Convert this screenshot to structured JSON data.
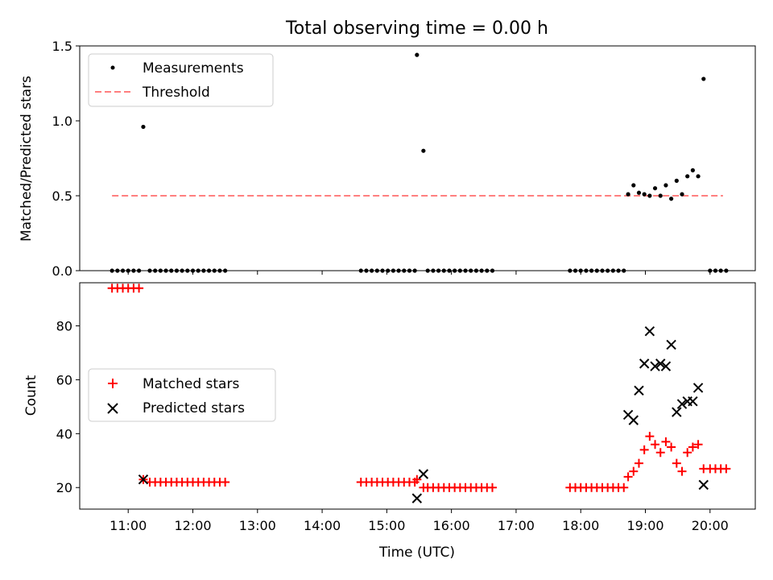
{
  "chart_data": [
    {
      "type": "scatter",
      "title": "Total observing time = 0.00 h",
      "ylabel": "Matched/Predicted stars",
      "xlabel": "",
      "xlim": [
        "10:15",
        "20:42"
      ],
      "ylim": [
        0,
        1.5
      ],
      "yticks": [
        0.0,
        0.5,
        1.0,
        1.5
      ],
      "ytick_labels": [
        "0.0",
        "0.5",
        "1.0",
        "1.5"
      ],
      "grid": false,
      "legend": "top-left",
      "colors": {
        "measurements": "#000000",
        "threshold": "#ff7f7f"
      },
      "series": [
        {
          "name": "Measurements",
          "points": [
            [
              "10:45",
              0
            ],
            [
              "10:50",
              0
            ],
            [
              "10:55",
              0
            ],
            [
              "11:00",
              0
            ],
            [
              "11:05",
              0
            ],
            [
              "11:10",
              0
            ],
            [
              "11:14",
              0.96
            ],
            [
              "11:20",
              0
            ],
            [
              "11:25",
              0
            ],
            [
              "11:30",
              0
            ],
            [
              "11:35",
              0
            ],
            [
              "11:40",
              0
            ],
            [
              "11:45",
              0
            ],
            [
              "11:50",
              0
            ],
            [
              "11:55",
              0
            ],
            [
              "12:00",
              0
            ],
            [
              "12:05",
              0
            ],
            [
              "12:10",
              0
            ],
            [
              "12:15",
              0
            ],
            [
              "12:20",
              0
            ],
            [
              "12:25",
              0
            ],
            [
              "12:30",
              0
            ],
            [
              "14:36",
              0
            ],
            [
              "14:41",
              0
            ],
            [
              "14:46",
              0
            ],
            [
              "14:51",
              0
            ],
            [
              "14:56",
              0
            ],
            [
              "15:01",
              0
            ],
            [
              "15:06",
              0
            ],
            [
              "15:11",
              0
            ],
            [
              "15:16",
              0
            ],
            [
              "15:21",
              0
            ],
            [
              "15:26",
              0
            ],
            [
              "15:28",
              1.44
            ],
            [
              "15:34",
              0.8
            ],
            [
              "15:38",
              0
            ],
            [
              "15:43",
              0
            ],
            [
              "15:48",
              0
            ],
            [
              "15:53",
              0
            ],
            [
              "15:58",
              0
            ],
            [
              "16:03",
              0
            ],
            [
              "16:08",
              0
            ],
            [
              "16:13",
              0
            ],
            [
              "16:18",
              0
            ],
            [
              "16:23",
              0
            ],
            [
              "16:28",
              0
            ],
            [
              "16:33",
              0
            ],
            [
              "16:38",
              0
            ],
            [
              "17:50",
              0
            ],
            [
              "17:55",
              0
            ],
            [
              "18:00",
              0
            ],
            [
              "18:05",
              0
            ],
            [
              "18:10",
              0
            ],
            [
              "18:15",
              0
            ],
            [
              "18:20",
              0
            ],
            [
              "18:25",
              0
            ],
            [
              "18:30",
              0
            ],
            [
              "18:35",
              0
            ],
            [
              "18:40",
              0
            ],
            [
              "18:44",
              0.51
            ],
            [
              "18:49",
              0.57
            ],
            [
              "18:54",
              0.52
            ],
            [
              "18:59",
              0.51
            ],
            [
              "19:04",
              0.5
            ],
            [
              "19:09",
              0.55
            ],
            [
              "19:14",
              0.5
            ],
            [
              "19:19",
              0.57
            ],
            [
              "19:24",
              0.48
            ],
            [
              "19:29",
              0.6
            ],
            [
              "19:34",
              0.51
            ],
            [
              "19:39",
              0.63
            ],
            [
              "19:44",
              0.67
            ],
            [
              "19:49",
              0.63
            ],
            [
              "19:54",
              1.28
            ],
            [
              "20:00",
              0
            ],
            [
              "20:05",
              0
            ],
            [
              "20:10",
              0
            ],
            [
              "20:15",
              0
            ]
          ]
        },
        {
          "name": "Threshold",
          "style": "dashed",
          "x": [
            "10:45",
            "20:12"
          ],
          "y": [
            0.5,
            0.5
          ]
        }
      ]
    },
    {
      "type": "scatter",
      "title": "",
      "xlabel": "Time (UTC)",
      "ylabel": "Count",
      "xlim": [
        "10:15",
        "20:42"
      ],
      "ylim": [
        12,
        96
      ],
      "xticks": [
        "11:00",
        "12:00",
        "13:00",
        "14:00",
        "15:00",
        "16:00",
        "17:00",
        "18:00",
        "19:00",
        "20:00"
      ],
      "yticks": [
        20,
        40,
        60,
        80
      ],
      "ytick_labels": [
        "20",
        "40",
        "60",
        "80"
      ],
      "grid": false,
      "legend": "center-left",
      "colors": {
        "matched": "#ff0000",
        "predicted": "#000000"
      },
      "series": [
        {
          "name": "Matched stars",
          "marker": "plus",
          "points": [
            [
              "10:45",
              94
            ],
            [
              "10:50",
              94
            ],
            [
              "10:55",
              94
            ],
            [
              "11:00",
              94
            ],
            [
              "11:05",
              94
            ],
            [
              "11:10",
              94
            ],
            [
              "11:14",
              23
            ],
            [
              "11:20",
              22
            ],
            [
              "11:25",
              22
            ],
            [
              "11:30",
              22
            ],
            [
              "11:35",
              22
            ],
            [
              "11:40",
              22
            ],
            [
              "11:45",
              22
            ],
            [
              "11:50",
              22
            ],
            [
              "11:55",
              22
            ],
            [
              "12:00",
              22
            ],
            [
              "12:05",
              22
            ],
            [
              "12:10",
              22
            ],
            [
              "12:15",
              22
            ],
            [
              "12:20",
              22
            ],
            [
              "12:25",
              22
            ],
            [
              "12:30",
              22
            ],
            [
              "14:36",
              22
            ],
            [
              "14:41",
              22
            ],
            [
              "14:46",
              22
            ],
            [
              "14:51",
              22
            ],
            [
              "14:56",
              22
            ],
            [
              "15:01",
              22
            ],
            [
              "15:06",
              22
            ],
            [
              "15:11",
              22
            ],
            [
              "15:16",
              22
            ],
            [
              "15:21",
              22
            ],
            [
              "15:26",
              22
            ],
            [
              "15:28",
              23
            ],
            [
              "15:34",
              20
            ],
            [
              "15:38",
              20
            ],
            [
              "15:43",
              20
            ],
            [
              "15:48",
              20
            ],
            [
              "15:53",
              20
            ],
            [
              "15:58",
              20
            ],
            [
              "16:03",
              20
            ],
            [
              "16:08",
              20
            ],
            [
              "16:13",
              20
            ],
            [
              "16:18",
              20
            ],
            [
              "16:23",
              20
            ],
            [
              "16:28",
              20
            ],
            [
              "16:33",
              20
            ],
            [
              "16:38",
              20
            ],
            [
              "17:50",
              20
            ],
            [
              "17:55",
              20
            ],
            [
              "18:00",
              20
            ],
            [
              "18:05",
              20
            ],
            [
              "18:10",
              20
            ],
            [
              "18:15",
              20
            ],
            [
              "18:20",
              20
            ],
            [
              "18:25",
              20
            ],
            [
              "18:30",
              20
            ],
            [
              "18:35",
              20
            ],
            [
              "18:40",
              20
            ],
            [
              "18:44",
              24
            ],
            [
              "18:49",
              26
            ],
            [
              "18:54",
              29
            ],
            [
              "18:59",
              34
            ],
            [
              "19:04",
              39
            ],
            [
              "19:09",
              36
            ],
            [
              "19:14",
              33
            ],
            [
              "19:19",
              37
            ],
            [
              "19:24",
              35
            ],
            [
              "19:29",
              29
            ],
            [
              "19:34",
              26
            ],
            [
              "19:39",
              33
            ],
            [
              "19:44",
              35
            ],
            [
              "19:49",
              36
            ],
            [
              "19:54",
              27
            ],
            [
              "20:00",
              27
            ],
            [
              "20:05",
              27
            ],
            [
              "20:10",
              27
            ],
            [
              "20:15",
              27
            ]
          ]
        },
        {
          "name": "Predicted stars",
          "marker": "x",
          "points": [
            [
              "11:14",
              23
            ],
            [
              "15:28",
              16
            ],
            [
              "15:34",
              25
            ],
            [
              "18:44",
              47
            ],
            [
              "18:49",
              45
            ],
            [
              "18:54",
              56
            ],
            [
              "18:59",
              66
            ],
            [
              "19:04",
              78
            ],
            [
              "19:09",
              65
            ],
            [
              "19:14",
              66
            ],
            [
              "19:19",
              65
            ],
            [
              "19:24",
              73
            ],
            [
              "19:29",
              48
            ],
            [
              "19:34",
              51
            ],
            [
              "19:39",
              52
            ],
            [
              "19:44",
              52
            ],
            [
              "19:49",
              57
            ],
            [
              "19:54",
              21
            ]
          ]
        }
      ]
    }
  ]
}
